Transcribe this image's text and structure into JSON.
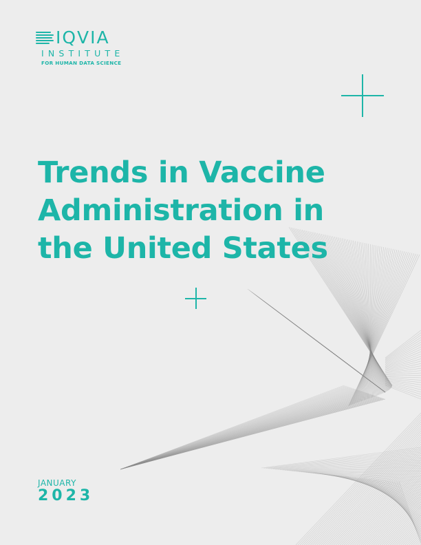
{
  "logo": {
    "brand": "IQVIA",
    "institute": "INSTITUTE",
    "tagline": "FOR HUMAN DATA SCIENCE"
  },
  "title_lines": [
    "Trends in Vaccine",
    "Administration in",
    "the United States"
  ],
  "date": {
    "month": "JANUARY",
    "year": "2023"
  },
  "colors": {
    "accent": "#1db5a8",
    "background": "#ededed",
    "decoration": "#9a9a9a"
  }
}
